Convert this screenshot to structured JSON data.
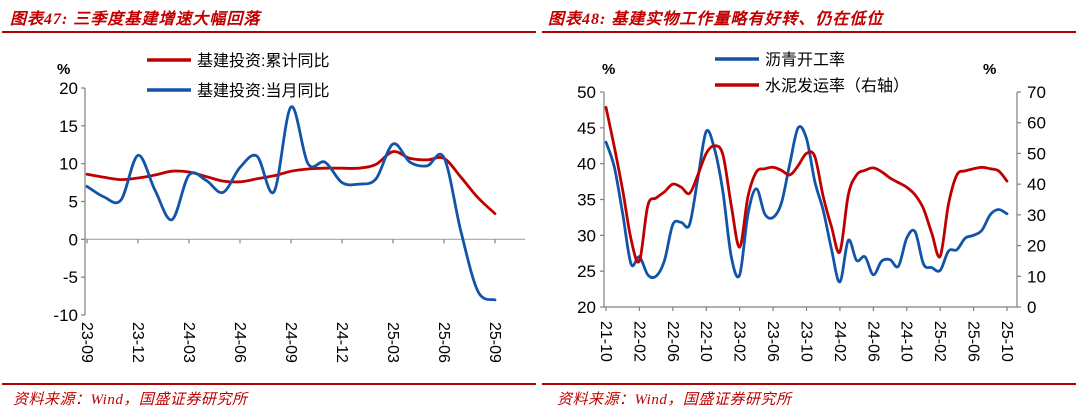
{
  "colors": {
    "accent_red": "#c00000",
    "rule_red": "#b00000",
    "line_red": "#c00000",
    "line_blue": "#1254a8",
    "axis_gray": "#808080",
    "zero_line_gray": "#a6a6a6"
  },
  "figures": [
    {
      "title": "图表47: 三季度基建增速大幅回落",
      "source": "资料来源：Wind，国盛证券研究所"
    },
    {
      "title": "图表48: 基建实物工作量略有好转、仍在低位",
      "source": "资料来源：Wind，国盛证券研究所"
    }
  ],
  "chart_data": [
    {
      "type": "line",
      "title": "图表47: 三季度基建增速大幅回落",
      "ylabel": "%",
      "ylim": [
        -10,
        20
      ],
      "yticks": [
        20,
        15,
        10,
        5,
        0,
        -5,
        -10
      ],
      "zero_line": true,
      "grid": false,
      "legend_position": "top",
      "x": [
        "23-09",
        "23-10",
        "23-11",
        "23-12",
        "24-01",
        "24-02",
        "24-03",
        "24-04",
        "24-05",
        "24-06",
        "24-07",
        "24-08",
        "24-09",
        "24-10",
        "24-11",
        "24-12",
        "25-01",
        "25-02",
        "25-03",
        "25-04",
        "25-05",
        "25-06",
        "25-07",
        "25-08",
        "25-09"
      ],
      "x_tick_labels": [
        "23-09",
        "23-12",
        "24-03",
        "24-06",
        "24-09",
        "24-12",
        "25-03",
        "25-06",
        "25-09"
      ],
      "series": [
        {
          "name": "基建投资:累计同比",
          "color": "#c00000",
          "axis": "left",
          "values": [
            8.6,
            8.2,
            7.9,
            8.1,
            8.5,
            9.0,
            8.9,
            8.3,
            7.7,
            7.6,
            8.0,
            8.4,
            9.0,
            9.3,
            9.4,
            9.4,
            9.4,
            9.9,
            11.6,
            10.7,
            10.5,
            10.7,
            8.2,
            5.5,
            3.4
          ]
        },
        {
          "name": "基建投资:当月同比",
          "color": "#1254a8",
          "axis": "left",
          "values": [
            7.0,
            5.6,
            5.2,
            11.1,
            6.5,
            2.6,
            8.5,
            7.8,
            6.2,
            9.5,
            11.0,
            6.3,
            17.5,
            10.0,
            10.2,
            7.5,
            7.3,
            8.0,
            12.6,
            10.2,
            9.7,
            10.8,
            1.0,
            -6.9,
            -8.0
          ]
        }
      ]
    },
    {
      "type": "line",
      "title": "图表48: 基建实物工作量略有好转、仍在低位",
      "ylabel_left": "%",
      "ylabel_right": "%",
      "ylim_left": [
        20,
        50
      ],
      "ylim_right": [
        0,
        70
      ],
      "yticks_left": [
        50,
        45,
        40,
        35,
        30,
        25,
        20
      ],
      "yticks_right": [
        70,
        60,
        50,
        40,
        30,
        20,
        10,
        0
      ],
      "grid": false,
      "legend_position": "top",
      "x": [
        "21-10",
        "21-11",
        "21-12",
        "22-01",
        "22-02",
        "22-03",
        "22-04",
        "22-05",
        "22-06",
        "22-07",
        "22-08",
        "22-09",
        "22-10",
        "22-11",
        "22-12",
        "23-01",
        "23-02",
        "23-03",
        "23-04",
        "23-05",
        "23-06",
        "23-07",
        "23-08",
        "23-09",
        "23-10",
        "23-11",
        "23-12",
        "24-01",
        "24-02",
        "24-03",
        "24-04",
        "24-05",
        "24-06",
        "24-07",
        "24-08",
        "24-09",
        "24-10",
        "24-11",
        "24-12",
        "25-01",
        "25-02",
        "25-03",
        "25-04",
        "25-05",
        "25-06",
        "25-07",
        "25-08",
        "25-09",
        "25-10"
      ],
      "x_tick_labels": [
        "21-10",
        "22-02",
        "22-06",
        "22-10",
        "23-02",
        "23-06",
        "23-10",
        "24-02",
        "24-06",
        "24-10",
        "25-02",
        "25-06",
        "25-10"
      ],
      "series": [
        {
          "name": "沥青开工率",
          "color": "#1254a8",
          "axis": "left",
          "values": [
            43,
            39.5,
            33,
            26,
            27,
            24.5,
            24.3,
            26.5,
            31.5,
            31.8,
            31.5,
            38,
            44.5,
            42,
            36,
            27,
            24.5,
            33,
            36.5,
            33,
            32.5,
            34.5,
            40,
            45,
            43.5,
            37.5,
            33.5,
            28,
            23.5,
            29.3,
            26.5,
            27,
            24.5,
            26.4,
            26.6,
            25.7,
            29.6,
            30.5,
            26,
            25.5,
            25.1,
            27.8,
            28,
            29.6,
            30,
            30.7,
            32.9,
            33.6,
            33
          ]
        },
        {
          "name": "水泥发运率（右轴）",
          "color": "#c00000",
          "axis": "right",
          "values": [
            65,
            52,
            38,
            22,
            15,
            33,
            35.5,
            37.5,
            40,
            39,
            37,
            43,
            50,
            52.5,
            49.5,
            33,
            19.5,
            36,
            44,
            45,
            45.5,
            44.5,
            43,
            46,
            50,
            49,
            36,
            26,
            18,
            36.5,
            43,
            44.5,
            45.3,
            44,
            42,
            40.5,
            39,
            36.5,
            32,
            24,
            16.5,
            33.5,
            43,
            44.3,
            45,
            45.5,
            45,
            44.3,
            41
          ]
        }
      ]
    }
  ]
}
